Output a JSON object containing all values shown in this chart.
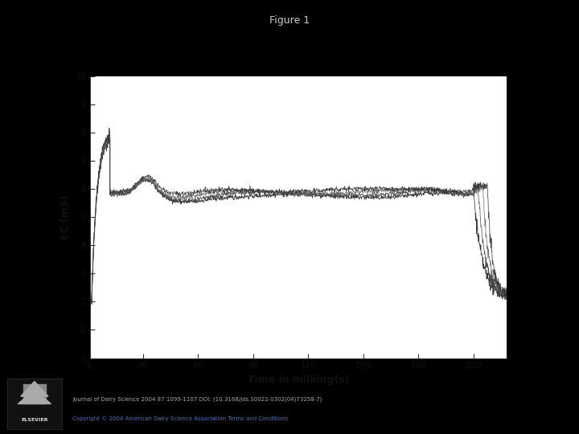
{
  "title": "Figure 1",
  "xlabel": "Time in milking(s)",
  "ylabel": "EC (mS)",
  "xlim": [
    1,
    228
  ],
  "ylim": [
    0,
    10
  ],
  "xticks": [
    1,
    30,
    60,
    90,
    120,
    150,
    180,
    210
  ],
  "yticks": [
    0,
    1,
    2,
    3,
    4,
    5,
    6,
    7,
    8,
    9,
    10
  ],
  "background_color": "#000000",
  "plot_bg_color": "#ffffff",
  "title_color": "#cccccc",
  "label_color": "#111111",
  "footer_text1": "Journal of Dairy Science 2004 87 1099-1107 DOI: (10.3168/jds.S0022-0302(04)73258-7)",
  "footer_text2": "Copyright © 2004 American Dairy Science Association Terms and Conditions",
  "footer_color1": "#aaaaaa",
  "footer_color2": "#4477bb",
  "n_curves": 4
}
